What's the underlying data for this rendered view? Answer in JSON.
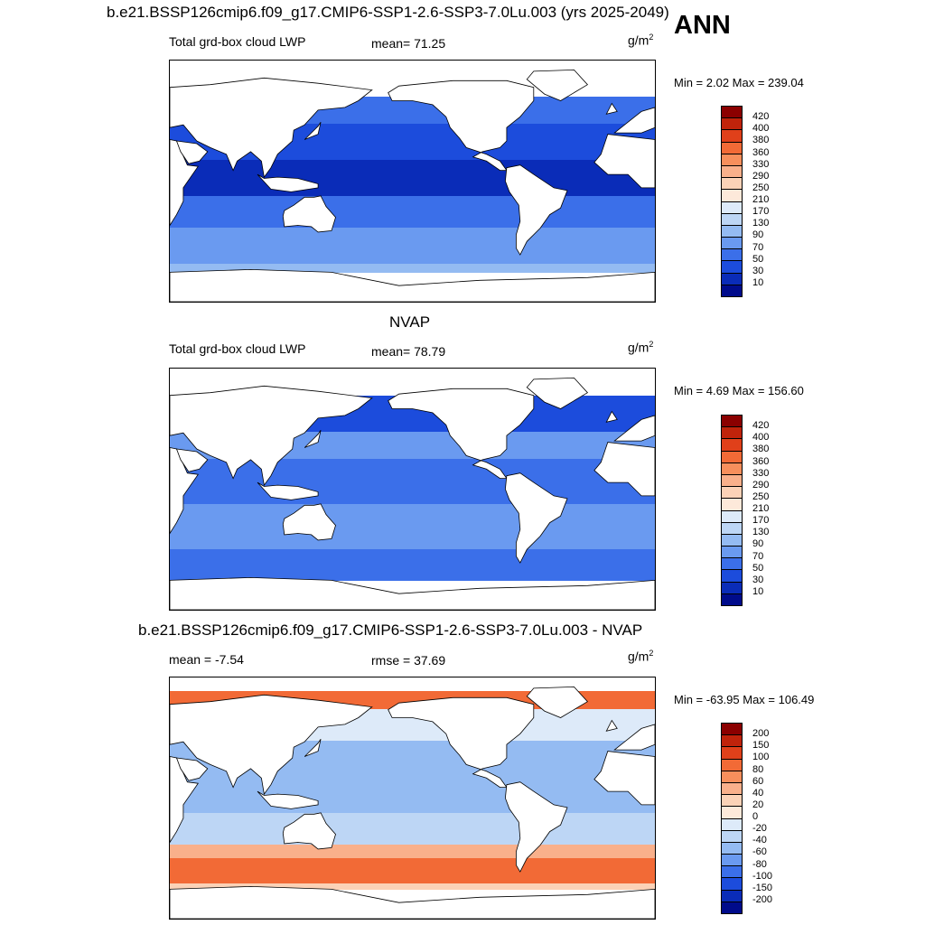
{
  "header": {
    "title": "b.e21.BSSP126cmip6.f09_g17.CMIP6-SSP1-2.6-SSP3-7.0Lu.003 (yrs 2025-2049)",
    "season": "ANN"
  },
  "panels": [
    {
      "title": "",
      "variable": "Total grd-box cloud LWP",
      "stat": "mean=  71.25",
      "units": "g/m",
      "units_sup": "2",
      "minmax": "Min =   2.02 Max = 239.04",
      "colorbar_labels": [
        "420",
        "400",
        "380",
        "360",
        "330",
        "290",
        "250",
        "210",
        "170",
        "130",
        "90",
        "70",
        "50",
        "30",
        "10"
      ],
      "colorbar_colors": [
        "#8b0000",
        "#c0230b",
        "#e0401a",
        "#f26a36",
        "#f78f5c",
        "#f9b08b",
        "#fbd2b7",
        "#fde9da",
        "#ddeaf9",
        "#bdd6f5",
        "#94bbf2",
        "#6a9af0",
        "#3b6fe9",
        "#1c4cdc",
        "#0a2cb8",
        "#000b8b"
      ]
    },
    {
      "title": "NVAP",
      "variable": "Total grd-box cloud LWP",
      "stat": "mean=  78.79",
      "units": "g/m",
      "units_sup": "2",
      "minmax": "Min =   4.69 Max = 156.60",
      "colorbar_labels": [
        "420",
        "400",
        "380",
        "360",
        "330",
        "290",
        "250",
        "210",
        "170",
        "130",
        "90",
        "70",
        "50",
        "30",
        "10"
      ],
      "colorbar_colors": [
        "#8b0000",
        "#c0230b",
        "#e0401a",
        "#f26a36",
        "#f78f5c",
        "#f9b08b",
        "#fbd2b7",
        "#fde9da",
        "#ddeaf9",
        "#bdd6f5",
        "#94bbf2",
        "#6a9af0",
        "#3b6fe9",
        "#1c4cdc",
        "#0a2cb8",
        "#000b8b"
      ]
    },
    {
      "title": "b.e21.BSSP126cmip6.f09_g17.CMIP6-SSP1-2.6-SSP3-7.0Lu.003 - NVAP",
      "variable": "mean =  -7.54",
      "stat": "rmse =  37.69",
      "units": "g/m",
      "units_sup": "2",
      "minmax": "Min = -63.95 Max = 106.49",
      "colorbar_labels": [
        "200",
        "150",
        "100",
        "80",
        "60",
        "40",
        "20",
        "0",
        "-20",
        "-40",
        "-60",
        "-80",
        "-100",
        "-150",
        "-200"
      ],
      "colorbar_colors": [
        "#8b0000",
        "#c0230b",
        "#e0401a",
        "#f26a36",
        "#f78f5c",
        "#f9b08b",
        "#fbd2b7",
        "#fde9da",
        "#ddeaf9",
        "#bdd6f5",
        "#94bbf2",
        "#6a9af0",
        "#3b6fe9",
        "#1c4cdc",
        "#0a2cb8",
        "#000b8b"
      ]
    }
  ],
  "chart_data": [
    {
      "type": "heatmap",
      "title": "Total grd-box cloud LWP",
      "projection": "global cylindrical equidistant map, centered on Pacific",
      "units": "g/m2",
      "mean": 71.25,
      "min": 2.02,
      "max": 239.04,
      "levels": [
        10,
        30,
        50,
        70,
        90,
        130,
        170,
        210,
        250,
        290,
        330,
        360,
        380,
        400,
        420
      ],
      "dominant_pattern": "values mostly 10-90 over oceans; higher (70-130) in mid-latitude storm tracks; land masked"
    },
    {
      "type": "heatmap",
      "title": "NVAP",
      "units": "g/m2",
      "mean": 78.79,
      "min": 4.69,
      "max": 156.6,
      "levels": [
        10,
        30,
        50,
        70,
        90,
        130,
        170,
        210,
        250,
        290,
        330,
        360,
        380,
        400,
        420
      ],
      "dominant_pattern": "values mostly 50-90 over oceans; land and polar regions masked"
    },
    {
      "type": "heatmap",
      "title": "b.e21.BSSP126cmip6.f09_g17.CMIP6-SSP1-2.6-SSP3-7.0Lu.003 - NVAP",
      "units": "g/m2",
      "mean": -7.54,
      "rmse": 37.69,
      "min": -63.95,
      "max": 106.49,
      "levels": [
        -200,
        -150,
        -100,
        -80,
        -60,
        -40,
        -20,
        0,
        20,
        40,
        60,
        80,
        100,
        150,
        200
      ],
      "dominant_pattern": "negative (-20 to -60) over tropical/subtropical oceans; positive (40-100) in Southern Ocean band and North Pacific/Atlantic high latitudes"
    }
  ]
}
